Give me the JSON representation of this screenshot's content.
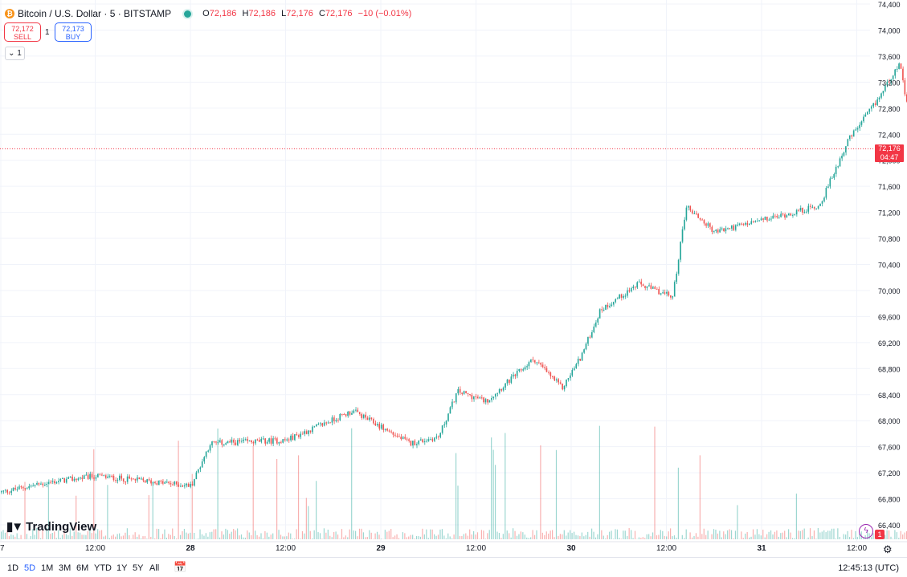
{
  "header": {
    "symbol_title": "Bitcoin / U.S. Dollar · 5 · BITSTAMP",
    "coin_icon": "bitcoin-icon",
    "open_label": "O",
    "open_value": "72,186",
    "high_label": "H",
    "high_value": "72,186",
    "low_label": "L",
    "low_value": "72,176",
    "close_label": "C",
    "close_value": "72,176",
    "change": "−10 (−0.01%)"
  },
  "trade": {
    "sell_price": "72,172",
    "sell_label": "SELL",
    "spread": "1",
    "buy_price": "72,173",
    "buy_label": "BUY"
  },
  "indicators_toggle": "1",
  "branding": {
    "logo_text": "TradingView",
    "logo_icon": "tradingview-logo"
  },
  "last_price": {
    "value": "72,176",
    "countdown": "04:47"
  },
  "alerts_badge": "1",
  "bottom_bar": {
    "ranges": [
      "1D",
      "5D",
      "1M",
      "3M",
      "6M",
      "YTD",
      "1Y",
      "5Y",
      "All"
    ],
    "active_range": "5D",
    "clock": "12:45:13 (UTC)"
  },
  "colors": {
    "up": "#26a69a",
    "down": "#ef5350",
    "accent": "#2962ff",
    "last": "#f23645"
  },
  "chart_data": {
    "type": "candlestick",
    "y_axis_ticks": [
      74400,
      74000,
      73600,
      73200,
      72800,
      72400,
      72000,
      71600,
      71200,
      70800,
      70400,
      70000,
      69600,
      69200,
      68800,
      68400,
      68000,
      67600,
      67200,
      66800,
      66400
    ],
    "y_axis_labels": [
      "74,400",
      "74,000",
      "73,600",
      "73,200",
      "72,800",
      "72,400",
      "72,000",
      "71,600",
      "71,200",
      "70,800",
      "70,400",
      "70,000",
      "69,600",
      "69,200",
      "68,800",
      "68,400",
      "68,000",
      "67,600",
      "67,200",
      "66,800",
      "66,400"
    ],
    "x_axis_labels": [
      "7",
      "12:00",
      "28",
      "12:00",
      "29",
      "12:00",
      "30",
      "12:00",
      "31",
      "12:00"
    ],
    "ylim": [
      66200,
      74450
    ],
    "price_path": [
      {
        "t": 0.0,
        "p": 66900
      },
      {
        "t": 0.25,
        "p": 67050
      },
      {
        "t": 0.5,
        "p": 67150
      },
      {
        "t": 1.0,
        "p": 67000
      },
      {
        "t": 1.1,
        "p": 67650
      },
      {
        "t": 1.5,
        "p": 67700
      },
      {
        "t": 1.85,
        "p": 68150
      },
      {
        "t": 2.15,
        "p": 67650
      },
      {
        "t": 2.3,
        "p": 67750
      },
      {
        "t": 2.4,
        "p": 68450
      },
      {
        "t": 2.55,
        "p": 68300
      },
      {
        "t": 2.8,
        "p": 68950
      },
      {
        "t": 2.95,
        "p": 68500
      },
      {
        "t": 3.05,
        "p": 69000
      },
      {
        "t": 3.15,
        "p": 69700
      },
      {
        "t": 3.35,
        "p": 70100
      },
      {
        "t": 3.53,
        "p": 69900
      },
      {
        "t": 3.6,
        "p": 71300
      },
      {
        "t": 3.75,
        "p": 70900
      },
      {
        "t": 4.1,
        "p": 71150
      },
      {
        "t": 4.3,
        "p": 71300
      },
      {
        "t": 4.45,
        "p": 72300
      },
      {
        "t": 4.6,
        "p": 72900
      },
      {
        "t": 4.72,
        "p": 73500
      },
      {
        "t": 4.8,
        "p": 72200
      },
      {
        "t": 4.95,
        "p": 72700
      },
      {
        "t": 5.05,
        "p": 72100
      },
      {
        "t": 5.25,
        "p": 72350
      },
      {
        "t": 5.5,
        "p": 72400
      },
      {
        "t": 5.75,
        "p": 71800
      },
      {
        "t": 6.0,
        "p": 71900
      },
      {
        "t": 6.25,
        "p": 71900
      },
      {
        "t": 6.35,
        "p": 72750
      },
      {
        "t": 6.5,
        "p": 72100
      },
      {
        "t": 6.75,
        "p": 72300
      },
      {
        "t": 7.1,
        "p": 72200
      },
      {
        "t": 7.25,
        "p": 72550
      },
      {
        "t": 7.35,
        "p": 72176
      }
    ],
    "last_price": 72176
  }
}
